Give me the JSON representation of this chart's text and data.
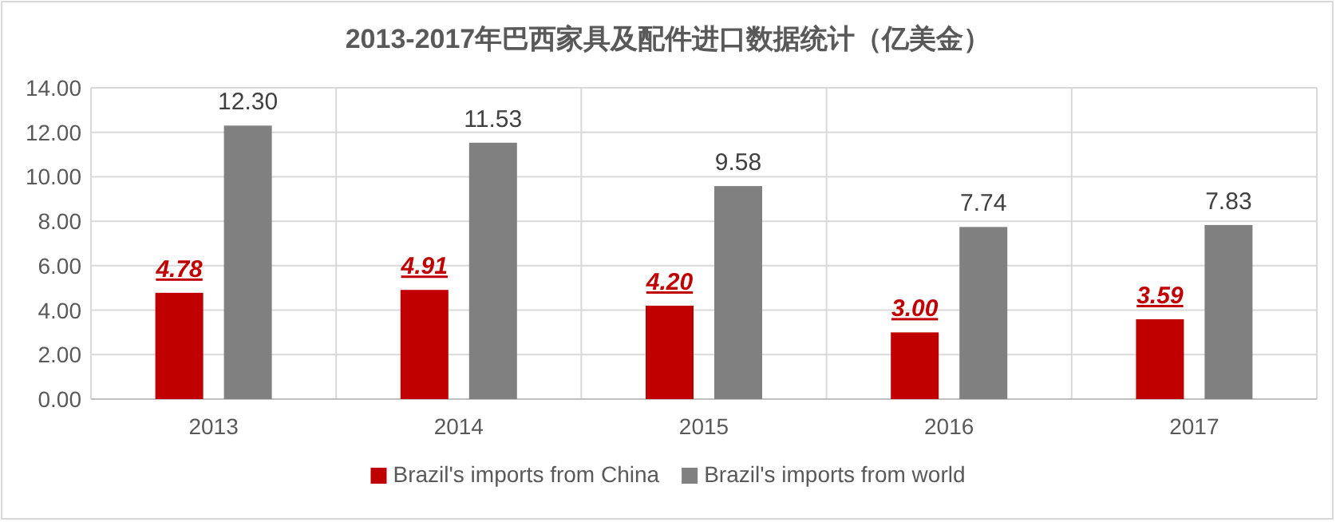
{
  "chart_data": {
    "type": "bar",
    "title": "2013-2017年巴西家具及配件进口数据统计（亿美金）",
    "categories": [
      "2013",
      "2014",
      "2015",
      "2016",
      "2017"
    ],
    "series": [
      {
        "name": "Brazil's imports from China",
        "color": "#c00000",
        "values": [
          4.78,
          4.91,
          4.2,
          3.0,
          3.59
        ],
        "value_labels": [
          "4.78",
          "4.91",
          "4.20",
          "3.00",
          "3.59"
        ]
      },
      {
        "name": "Brazil's imports from world",
        "color": "#808080",
        "values": [
          12.3,
          11.53,
          9.58,
          7.74,
          7.83
        ],
        "value_labels": [
          "12.30",
          "11.53",
          "9.58",
          "7.74",
          "7.83"
        ]
      }
    ],
    "ylim": [
      0,
      14
    ],
    "yticks": [
      {
        "value": 0,
        "label": "0.00"
      },
      {
        "value": 2,
        "label": "2.00"
      },
      {
        "value": 4,
        "label": "4.00"
      },
      {
        "value": 6,
        "label": "6.00"
      },
      {
        "value": 8,
        "label": "8.00"
      },
      {
        "value": 10,
        "label": "10.00"
      },
      {
        "value": 12,
        "label": "12.00"
      },
      {
        "value": 14,
        "label": "14.00"
      }
    ],
    "grid": true,
    "legend": "bottom"
  }
}
